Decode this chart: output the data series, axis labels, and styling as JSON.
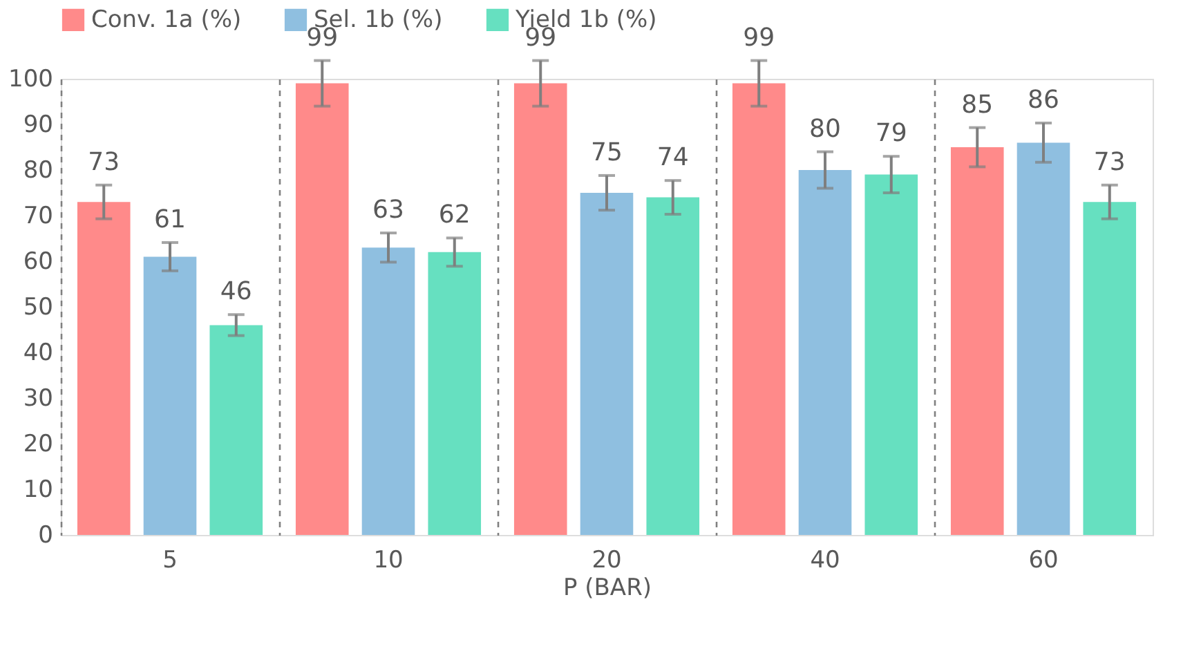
{
  "chart_data": {
    "type": "bar",
    "xlabel": "P (BAR)",
    "categories": [
      "5",
      "10",
      "20",
      "40",
      "60"
    ],
    "series": [
      {
        "name": "Conv. 1a (%)",
        "color": "#ff8a8a",
        "values": [
          73,
          99,
          99,
          99,
          85
        ],
        "errors": [
          3.7,
          5,
          5,
          5,
          4.3
        ]
      },
      {
        "name": "Sel. 1b (%)",
        "color": "#8fbfe0",
        "values": [
          61,
          63,
          75,
          80,
          86
        ],
        "errors": [
          3.1,
          3.2,
          3.8,
          4,
          4.3
        ]
      },
      {
        "name": "Yield 1b (%)",
        "color": "#66e0c0",
        "values": [
          46,
          62,
          74,
          79,
          73
        ],
        "errors": [
          2.3,
          3.1,
          3.7,
          4,
          3.7
        ]
      }
    ],
    "ylim": [
      0,
      100
    ],
    "yticks": [
      0,
      10,
      20,
      30,
      40,
      50,
      60,
      70,
      80,
      90,
      100
    ],
    "grid": "x",
    "legend": "top",
    "data_labels": true
  }
}
